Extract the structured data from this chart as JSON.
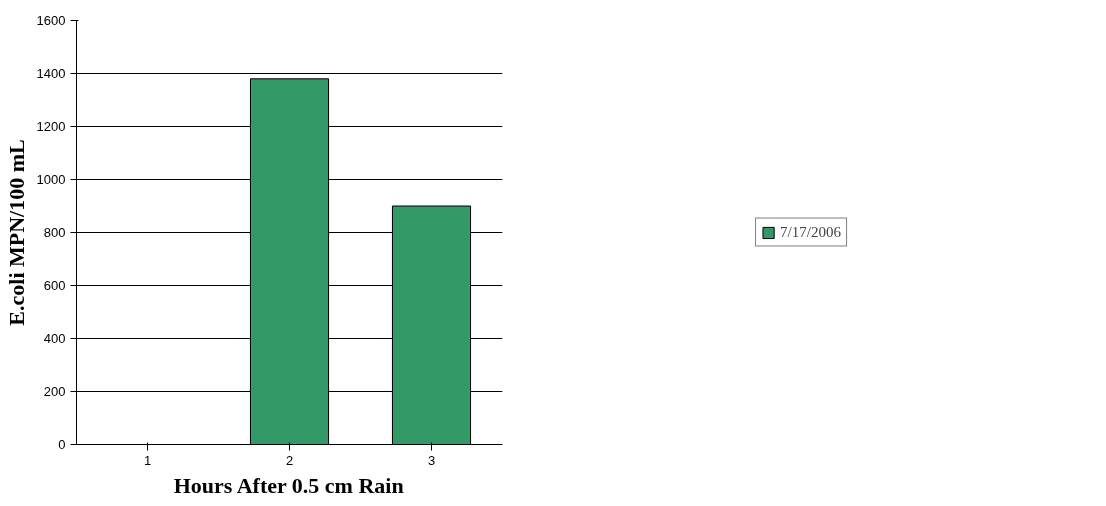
{
  "chart_data": {
    "type": "bar",
    "xlabel": "Hours After 0.5 cm Rain",
    "ylabel": "E.coli MPN/100 mL",
    "categories": [
      "1",
      "2",
      "3"
    ],
    "series": [
      {
        "name": "7/17/2006",
        "color": "#339966",
        "values": [
          null,
          1380,
          900
        ]
      }
    ],
    "ylim": [
      0,
      1600
    ],
    "yticks": [
      0,
      200,
      400,
      600,
      800,
      1000,
      1200,
      1400,
      1600
    ],
    "grid": "y",
    "legend": "right"
  }
}
